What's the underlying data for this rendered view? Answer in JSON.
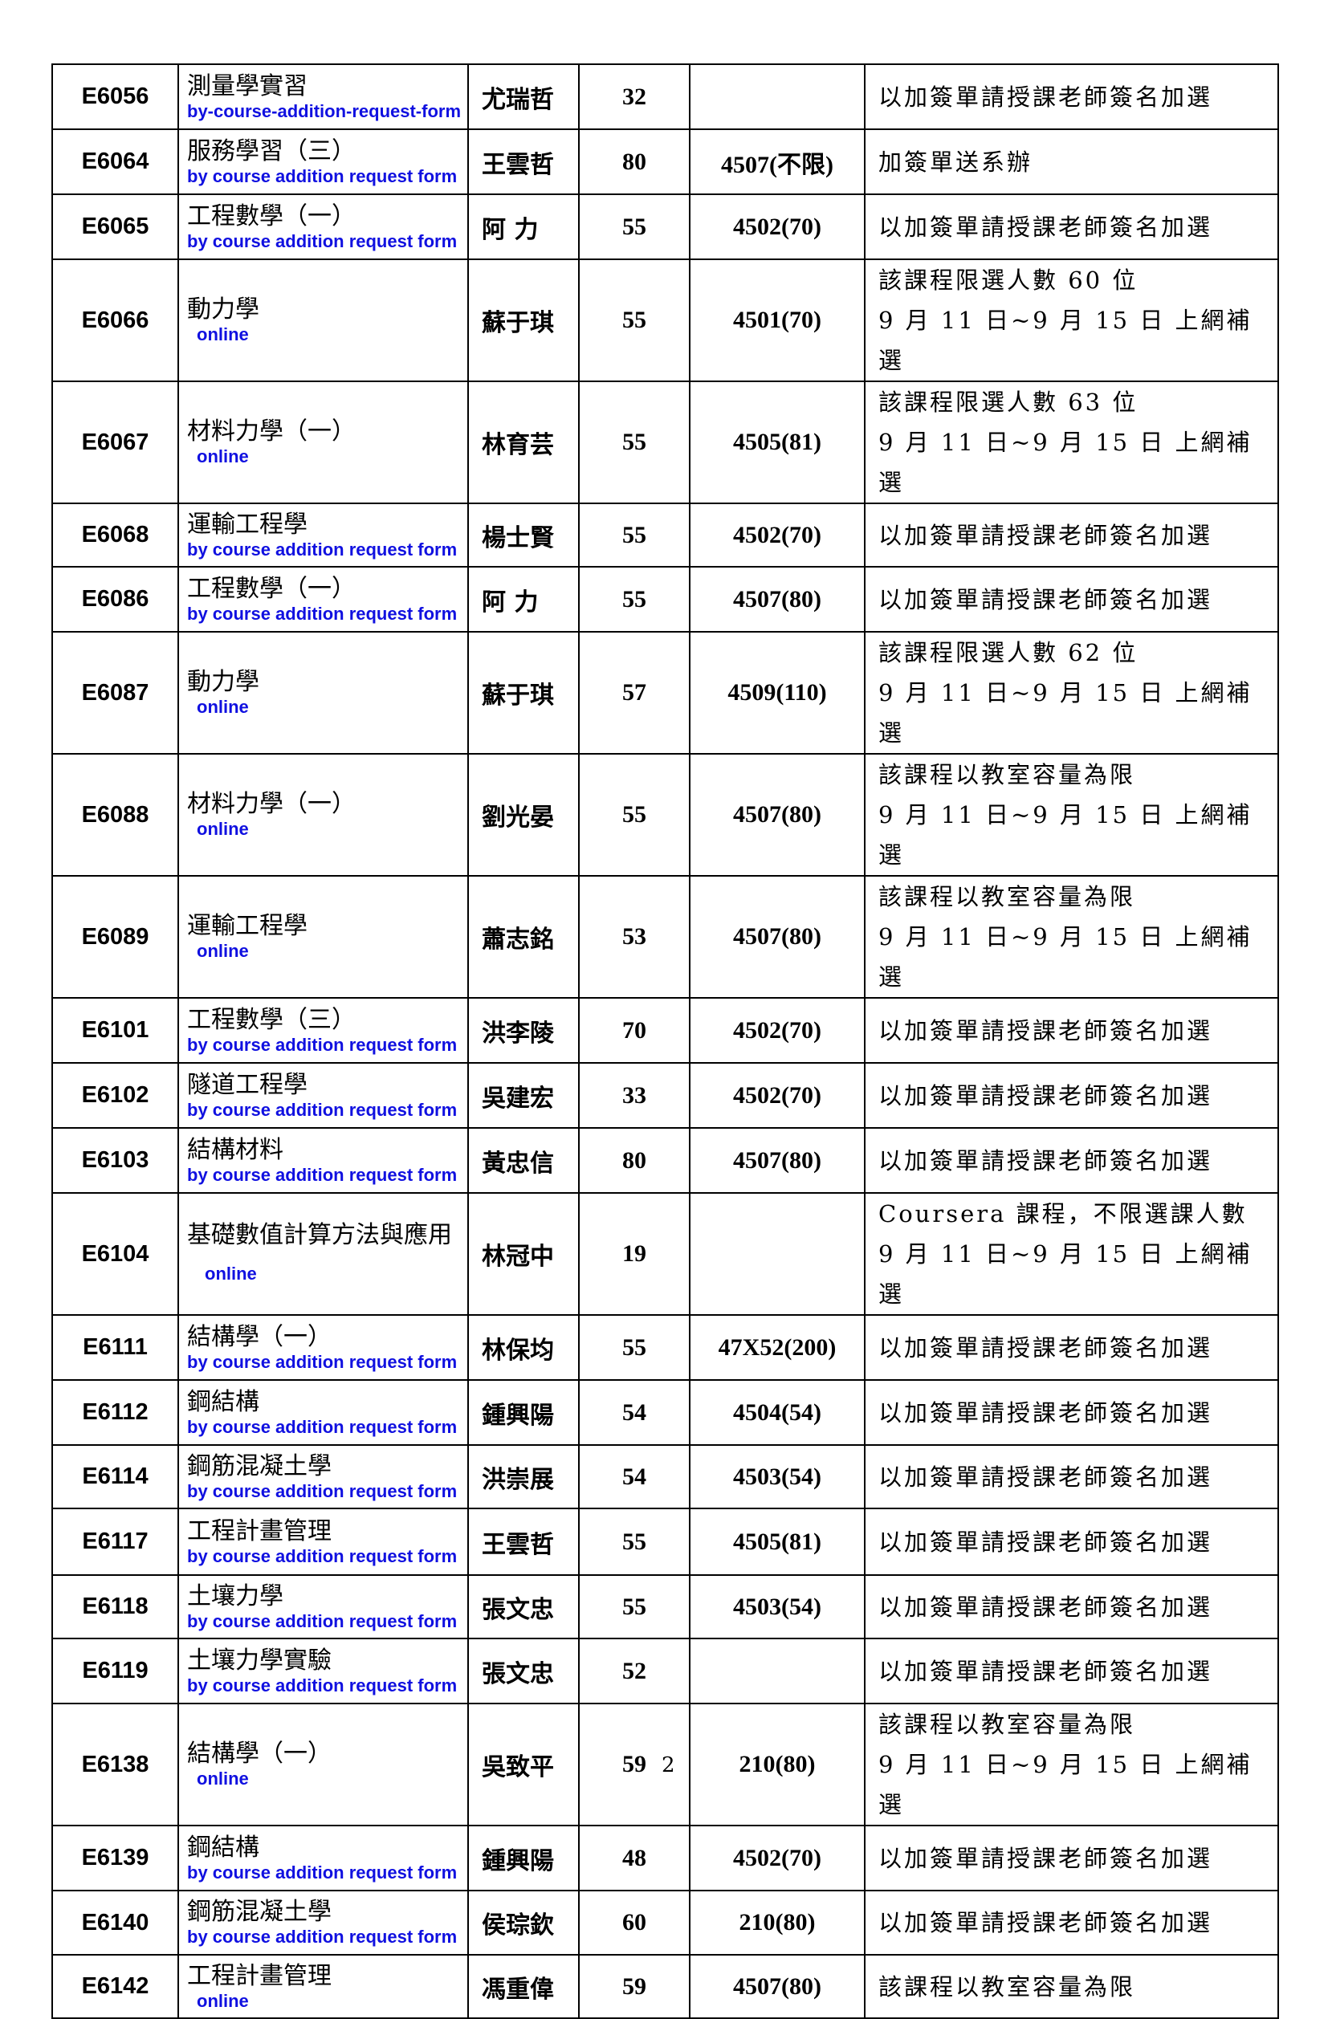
{
  "rows": [
    {
      "code": "E6056",
      "name": "測量學實習",
      "teacher": "尤瑞哲",
      "num": "32",
      "room": "",
      "remark": [
        "以加簽單請授課老師簽名加選"
      ],
      "note": "by-course-addition-request-form"
    },
    {
      "code": "E6064",
      "name": "服務學習（三）",
      "teacher": "王雲哲",
      "num": "80",
      "room": "4507(不限)",
      "remark": [
        "加簽單送系辦"
      ],
      "note": "by course addition request form"
    },
    {
      "code": "E6065",
      "name": "工程數學（一）",
      "teacher": "阿 力",
      "num": "55",
      "room": "4502(70)",
      "remark": [
        "以加簽單請授課老師簽名加選"
      ],
      "note": "by course addition request form"
    },
    {
      "code": "E6066",
      "name": "動力學",
      "teacher": "蘇于琪",
      "num": "55",
      "room": "4501(70)",
      "remark": [
        "該課程限選人數 60 位",
        "9 月 11 日~9 月 15 日 上網補選"
      ],
      "note": "online"
    },
    {
      "code": "E6067",
      "name": "材料力學（一）",
      "teacher": "林育芸",
      "num": "55",
      "room": "4505(81)",
      "remark": [
        "該課程限選人數 63 位",
        "9 月 11 日~9 月 15 日 上網補選"
      ],
      "note": "online"
    },
    {
      "code": "E6068",
      "name": "運輸工程學",
      "teacher": "楊士賢",
      "num": "55",
      "room": "4502(70)",
      "remark": [
        "以加簽單請授課老師簽名加選"
      ],
      "note": "by course addition request form"
    },
    {
      "code": "E6086",
      "name": "工程數學（一）",
      "teacher": "阿 力",
      "num": "55",
      "room": "4507(80)",
      "remark": [
        "以加簽單請授課老師簽名加選"
      ],
      "note": "by course addition request form"
    },
    {
      "code": "E6087",
      "name": "動力學",
      "teacher": "蘇于琪",
      "num": "57",
      "room": "4509(110)",
      "remark": [
        "該課程限選人數 62 位",
        "9 月 11 日~9 月 15 日 上網補選"
      ],
      "note": "online"
    },
    {
      "code": "E6088",
      "name": "材料力學（一）",
      "teacher": "劉光晏",
      "num": "55",
      "room": "4507(80)",
      "remark": [
        "該課程以教室容量為限",
        "9 月 11 日~9 月 15 日 上網補選"
      ],
      "note": "online"
    },
    {
      "code": "E6089",
      "name": "運輸工程學",
      "teacher": "蕭志銘",
      "num": "53",
      "room": "4507(80)",
      "remark": [
        "該課程以教室容量為限",
        "9 月 11 日~9 月 15 日 上網補選"
      ],
      "note": "online"
    },
    {
      "code": "E6101",
      "name": "工程數學（三）",
      "teacher": "洪李陵",
      "num": "70",
      "room": "4502(70)",
      "remark": [
        "以加簽單請授課老師簽名加選"
      ],
      "note": "by course addition request form"
    },
    {
      "code": "E6102",
      "name": "隧道工程學",
      "teacher": "吳建宏",
      "num": "33",
      "room": "4502(70)",
      "remark": [
        "以加簽單請授課老師簽名加選"
      ],
      "note": "by course addition request form"
    },
    {
      "code": "E6103",
      "name": "結構材料",
      "teacher": "黃忠信",
      "num": "80",
      "room": "4507(80)",
      "remark": [
        "以加簽單請授課老師簽名加選"
      ],
      "note": "by course addition request form"
    },
    {
      "code": "E6104",
      "name": "基礎數值計算方法與應用",
      "teacher": "林冠中",
      "num": "19",
      "room": "",
      "remark": [
        "Coursera 課程，不限選課人數",
        "9 月 11 日~9 月 15 日 上網補選"
      ],
      "note": "online"
    },
    {
      "code": "E6111",
      "name": "結構學（一）",
      "teacher": "林保均",
      "num": "55",
      "room": "47X52(200)",
      "remark": [
        "以加簽單請授課老師簽名加選"
      ],
      "note": "by course addition request form"
    },
    {
      "code": "E6112",
      "name": "鋼結構",
      "teacher": "鍾興陽",
      "num": "54",
      "room": "4504(54)",
      "remark": [
        "以加簽單請授課老師簽名加選"
      ],
      "note": "by course addition request form"
    },
    {
      "code": "E6114",
      "name": "鋼筋混凝土學",
      "teacher": "洪崇展",
      "num": "54",
      "room": "4503(54)",
      "remark": [
        "以加簽單請授課老師簽名加選"
      ],
      "note": "by course addition request form"
    },
    {
      "code": "E6117",
      "name": "工程計畫管理",
      "teacher": "王雲哲",
      "num": "55",
      "room": "4505(81)",
      "remark": [
        "以加簽單請授課老師簽名加選"
      ],
      "note": "by course addition request form"
    },
    {
      "code": "E6118",
      "name": "土壤力學",
      "teacher": "張文忠",
      "num": "55",
      "room": "4503(54)",
      "remark": [
        "以加簽單請授課老師簽名加選"
      ],
      "note": "by course addition request form"
    },
    {
      "code": "E6119",
      "name": "土壤力學實驗",
      "teacher": "張文忠",
      "num": "52",
      "room": "",
      "remark": [
        "以加簽單請授課老師簽名加選"
      ],
      "note": "by course addition request form"
    },
    {
      "code": "E6138",
      "name": "結構學（一）",
      "teacher": "吳致平",
      "num": "59",
      "room": "210(80)",
      "remark": [
        "該課程以教室容量為限",
        "9 月 11 日~9 月 15 日 上網補選"
      ],
      "note": "online"
    },
    {
      "code": "E6139",
      "name": "鋼結構",
      "teacher": "鍾興陽",
      "num": "48",
      "room": "4502(70)",
      "remark": [
        "以加簽單請授課老師簽名加選"
      ],
      "note": "by course addition request form"
    },
    {
      "code": "E6140",
      "name": "鋼筋混凝土學",
      "teacher": "侯琮欽",
      "num": "60",
      "room": "210(80)",
      "remark": [
        "以加簽單請授課老師簽名加選"
      ],
      "note": "by course addition request form"
    },
    {
      "code": "E6142",
      "name": "工程計畫管理",
      "teacher": "馮重偉",
      "num": "59",
      "room": "4507(80)",
      "remark": [
        "該課程以教室容量為限"
      ],
      "note": "online"
    }
  ],
  "annotation_color": "#1010e0",
  "page_number": "2"
}
